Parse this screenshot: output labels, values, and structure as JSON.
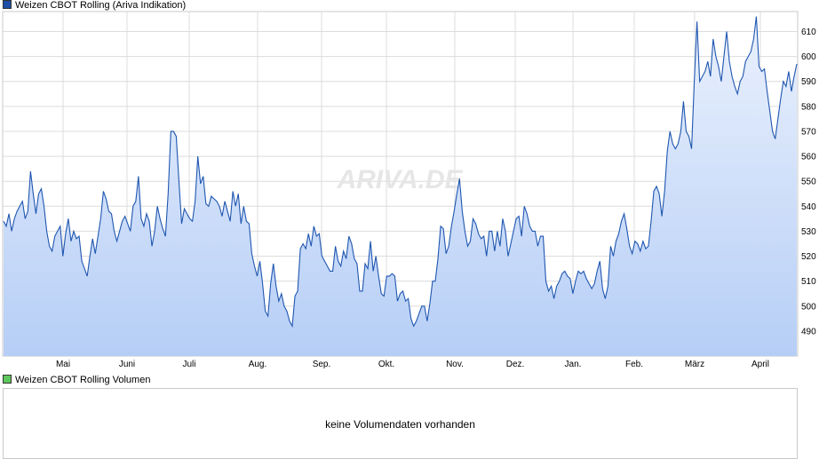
{
  "chart_data": [
    {
      "type": "area",
      "legend": "Weizen CBOT Rolling (Ariva Indikation)",
      "watermark": "ARIVA.DE",
      "colors": {
        "line": "#1f56b0",
        "fill_top": "#eaf1fd",
        "fill_bottom": "#b6cef6",
        "grid": "#dcdcdc",
        "legend_swatch": "#1f4fa6"
      },
      "ylim": [
        480,
        618
      ],
      "y_ticks": [
        490,
        500,
        510,
        520,
        530,
        540,
        550,
        560,
        570,
        580,
        590,
        600,
        610
      ],
      "x_ticks": [
        "Mai",
        "Juni",
        "Juli",
        "Aug.",
        "Sep.",
        "Okt.",
        "Nov.",
        "Dez.",
        "Jan.",
        "Feb.",
        "März",
        "April"
      ],
      "grid": true,
      "values": [
        534,
        532,
        537,
        530,
        535,
        538,
        540,
        542,
        535,
        538,
        554,
        545,
        537,
        545,
        547,
        540,
        530,
        524,
        522,
        528,
        530,
        532,
        520,
        529,
        535,
        526,
        530,
        527,
        528,
        518,
        515,
        512,
        520,
        527,
        521,
        528,
        535,
        546,
        543,
        538,
        537,
        530,
        526,
        530,
        534,
        536,
        533,
        530,
        540,
        542,
        552,
        535,
        532,
        537,
        534,
        524,
        530,
        540,
        535,
        531,
        528,
        545,
        570,
        570,
        568,
        550,
        533,
        539,
        537,
        535,
        534,
        542,
        560,
        549,
        552,
        541,
        540,
        544,
        543,
        542,
        540,
        536,
        542,
        538,
        534,
        546,
        540,
        545,
        533,
        540,
        534,
        533,
        521,
        516,
        512,
        518,
        509,
        498,
        496,
        509,
        517,
        508,
        502,
        505,
        500,
        498,
        494,
        492,
        504,
        506,
        523,
        525,
        523,
        529,
        524,
        532,
        528,
        529,
        520,
        518,
        516,
        514,
        514,
        524,
        518,
        516,
        522,
        519,
        528,
        525,
        519,
        517,
        506,
        506,
        517,
        515,
        526,
        514,
        520,
        512,
        505,
        504,
        512,
        512,
        513,
        512,
        502,
        505,
        506,
        502,
        503,
        495,
        492,
        494,
        497,
        500,
        500,
        494,
        501,
        510,
        510,
        519,
        532,
        531,
        521,
        524,
        532,
        538,
        545,
        551,
        538,
        530,
        524,
        526,
        535,
        533,
        529,
        527,
        528,
        520,
        530,
        530,
        522,
        530,
        524,
        535,
        530,
        520,
        525,
        530,
        535,
        536,
        528,
        540,
        537,
        532,
        530,
        530,
        524,
        528,
        528,
        510,
        506,
        508,
        503,
        508,
        510,
        513,
        514,
        512,
        511,
        505,
        510,
        514,
        513,
        514,
        511,
        509,
        507,
        509,
        514,
        518,
        507,
        503,
        508,
        524,
        520,
        526,
        529,
        534,
        537,
        531,
        524,
        521,
        526,
        525,
        522,
        526,
        523,
        524,
        534,
        546,
        548,
        545,
        536,
        546,
        562,
        570,
        565,
        563,
        565,
        570,
        582,
        570,
        568,
        563,
        590,
        614,
        590,
        592,
        594,
        598,
        592,
        607,
        600,
        596,
        590,
        600,
        610,
        598,
        592,
        588,
        585,
        590,
        592,
        598,
        600,
        602,
        607,
        616,
        596,
        594,
        595,
        586,
        578,
        570,
        567,
        575,
        583,
        590,
        588,
        594,
        586,
        592,
        597
      ]
    },
    {
      "type": "bar",
      "legend": "Weizen CBOT Rolling Volumen",
      "message": "keine Volumendaten vorhanden",
      "colors": {
        "legend_swatch": "#5cc85c"
      }
    }
  ]
}
